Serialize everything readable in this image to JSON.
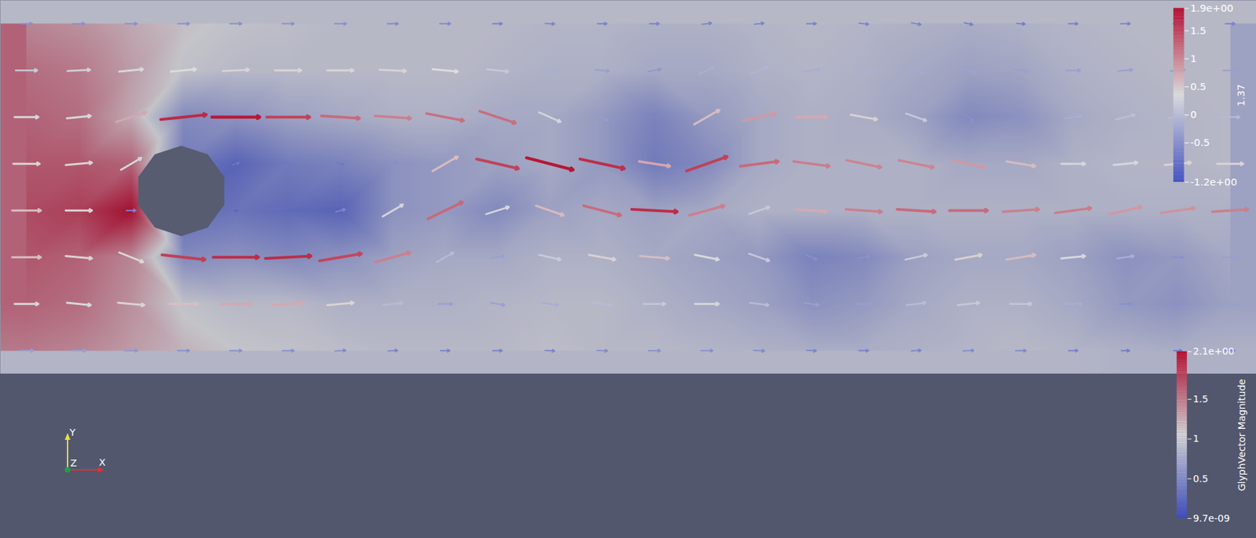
{
  "chart_data": {
    "type": "vector_field",
    "xlim": [
      0,
      16.8
    ],
    "ylim": [
      0,
      5
    ],
    "tick_labels": false,
    "x": [
      0.35,
      1.05,
      1.75,
      2.45,
      3.15,
      3.85,
      4.55,
      5.25,
      5.95,
      6.65,
      7.35,
      8.05,
      8.75,
      9.45,
      10.15,
      10.85,
      11.55,
      12.25,
      12.95,
      13.65,
      14.35,
      15.05,
      15.75,
      16.45
    ],
    "y": [
      0.3125,
      0.9375,
      1.5625,
      2.1875,
      2.8125,
      3.4375,
      4.0625,
      4.6875
    ],
    "u": [
      [
        0.6,
        0.6,
        0.55,
        0.5,
        0.5,
        0.5,
        0.45,
        0.4,
        0.4,
        0.4,
        0.4,
        0.45,
        0.5,
        0.5,
        0.45,
        0.4,
        0.4,
        0.4,
        0.45,
        0.45,
        0.4,
        0.35,
        0.35,
        0.4
      ],
      [
        1.0,
        1.0,
        1.1,
        1.2,
        1.3,
        1.3,
        1.1,
        0.8,
        0.6,
        0.6,
        0.7,
        0.8,
        0.9,
        1.0,
        0.8,
        0.6,
        0.6,
        0.8,
        0.9,
        0.9,
        0.7,
        0.5,
        0.5,
        0.6
      ],
      [
        1.2,
        1.1,
        1.0,
        1.8,
        1.9,
        1.9,
        1.75,
        1.45,
        0.7,
        0.6,
        0.9,
        1.1,
        1.2,
        1.0,
        0.85,
        0.45,
        0.5,
        0.9,
        1.1,
        1.2,
        1.0,
        0.7,
        0.5,
        0.6
      ],
      [
        1.2,
        1.1,
        0.4,
        0,
        0.15,
        0.2,
        0.4,
        0.85,
        1.45,
        0.95,
        1.15,
        1.55,
        1.9,
        1.45,
        0.85,
        1.3,
        1.5,
        1.6,
        1.6,
        1.5,
        1.5,
        1.35,
        1.4,
        1.5
      ],
      [
        1.1,
        1.1,
        0.85,
        0,
        0.3,
        0.25,
        0.3,
        0.45,
        1.05,
        1.75,
        1.95,
        1.85,
        1.3,
        1.7,
        1.6,
        1.5,
        1.45,
        1.45,
        1.35,
        1.2,
        1.0,
        1.0,
        1.1,
        1.1
      ],
      [
        1.0,
        1.0,
        1.25,
        1.9,
        2.0,
        1.8,
        1.6,
        1.5,
        1.55,
        1.5,
        0.9,
        0.5,
        0.4,
        1.05,
        1.35,
        1.3,
        1.1,
        0.85,
        0.4,
        0.5,
        0.7,
        0.8,
        0.8,
        0.8
      ],
      [
        0.9,
        0.95,
        1.0,
        1.05,
        1.1,
        1.1,
        1.1,
        1.1,
        1.05,
        0.9,
        0.7,
        0.6,
        0.55,
        0.65,
        0.7,
        0.7,
        0.7,
        0.65,
        0.6,
        0.6,
        0.6,
        0.6,
        0.6,
        0.6
      ],
      [
        0.5,
        0.5,
        0.5,
        0.5,
        0.5,
        0.5,
        0.5,
        0.45,
        0.45,
        0.4,
        0.4,
        0.4,
        0.4,
        0.4,
        0.4,
        0.4,
        0.4,
        0.4,
        0.35,
        0.35,
        0.4,
        0.4,
        0.4,
        0.4
      ]
    ],
    "v": [
      [
        0,
        0,
        0,
        0,
        0,
        0,
        0.02,
        0.02,
        0,
        0,
        -0.02,
        -0.02,
        0,
        0,
        -0.02,
        -0.02,
        0,
        0.02,
        0.02,
        0,
        0,
        0,
        0,
        0
      ],
      [
        0,
        -0.1,
        -0.1,
        0,
        0,
        0.1,
        0.1,
        0.1,
        0,
        -0.1,
        -0.1,
        -0.1,
        0,
        0,
        -0.1,
        -0.1,
        0,
        0.1,
        0.1,
        0,
        0,
        0,
        0,
        0
      ],
      [
        0,
        -0.1,
        -0.4,
        -0.2,
        0,
        0.1,
        0.3,
        0.4,
        0.4,
        0.1,
        -0.2,
        -0.2,
        -0.1,
        -0.2,
        -0.3,
        -0.2,
        0.1,
        0.2,
        0.2,
        0.2,
        0.1,
        0.1,
        0,
        0
      ],
      [
        0,
        0,
        0,
        0,
        0,
        0,
        0.1,
        0.5,
        0.7,
        0.3,
        -0.4,
        -0.4,
        -0.1,
        0.4,
        0.3,
        -0.1,
        -0.1,
        -0.1,
        0,
        0.1,
        0.2,
        0.3,
        0.2,
        0.1
      ],
      [
        0,
        0.1,
        0.5,
        0,
        0.1,
        -0.2,
        -0.1,
        0.2,
        0.6,
        -0.4,
        -0.5,
        -0.4,
        -0.2,
        0.6,
        0.2,
        -0.2,
        -0.3,
        -0.3,
        -0.3,
        -0.2,
        0,
        0.1,
        0.1,
        0
      ],
      [
        0,
        0.1,
        0.4,
        0.2,
        0,
        0,
        -0.1,
        -0.1,
        -0.3,
        -0.5,
        -0.4,
        -0.3,
        -0.1,
        0.6,
        0.3,
        0,
        -0.2,
        -0.3,
        -0.3,
        -0.1,
        0.1,
        0.2,
        0.1,
        0
      ],
      [
        0,
        0.05,
        0.1,
        0.1,
        0.05,
        0,
        0,
        -0.05,
        -0.1,
        -0.1,
        -0.1,
        -0.05,
        0.1,
        0.3,
        0.3,
        0.1,
        -0.2,
        -0.2,
        -0.2,
        -0.1,
        0,
        0.05,
        0.05,
        0
      ],
      [
        0,
        0,
        0,
        0,
        0,
        0,
        0,
        0,
        0,
        0,
        -0.02,
        0,
        0,
        0.05,
        0.05,
        0,
        -0.05,
        -0.08,
        -0.08,
        -0.02,
        0,
        0,
        0,
        0
      ]
    ],
    "scalar": [
      [
        1.0,
        0.9,
        0.7,
        0.5,
        0.35,
        0.3,
        0.25,
        0.2,
        0.2,
        0.2,
        0.25,
        0.2,
        0.2,
        0.15,
        0.1,
        0.05,
        0.05,
        0.1,
        0.15,
        0.2,
        0.15,
        0.1,
        0.05,
        0.1
      ],
      [
        1.2,
        1.1,
        0.8,
        0.3,
        0.2,
        0.2,
        0.1,
        0.1,
        0.1,
        0.15,
        0.2,
        0.2,
        0.1,
        0.0,
        -0.1,
        -0.3,
        -0.2,
        0.0,
        0.1,
        0.1,
        0.0,
        -0.2,
        -0.3,
        -0.1
      ],
      [
        1.3,
        1.2,
        0.9,
        -0.4,
        -0.3,
        -0.4,
        -0.3,
        -0.1,
        0.0,
        0.0,
        0.1,
        0.1,
        0.0,
        -0.1,
        -0.2,
        -0.5,
        -0.4,
        -0.1,
        0.0,
        0.0,
        -0.1,
        -0.3,
        -0.2,
        0.0
      ],
      [
        1.4,
        1.5,
        1.9,
        -0.8,
        -0.7,
        -0.8,
        -0.9,
        -0.3,
        -0.2,
        -0.4,
        -0.1,
        0.0,
        -0.1,
        0.0,
        0.1,
        0.1,
        0.1,
        0.1,
        0.1,
        0.1,
        0.1,
        0.1,
        0.1,
        0.1
      ],
      [
        1.3,
        1.3,
        1.2,
        -0.6,
        -0.9,
        -0.6,
        -0.5,
        -0.3,
        -0.2,
        -0.1,
        0.0,
        -0.2,
        -0.6,
        -0.4,
        0.0,
        0.1,
        0.1,
        0.1,
        0.0,
        0.0,
        0.1,
        0.15,
        0.15,
        0.2
      ],
      [
        1.2,
        1.1,
        0.6,
        -0.4,
        -0.3,
        -0.1,
        0.0,
        0.1,
        0.1,
        0.0,
        0.0,
        -0.2,
        -0.5,
        -0.2,
        0.0,
        0.1,
        0.05,
        -0.1,
        -0.4,
        -0.3,
        0.0,
        0.1,
        0.15,
        0.2
      ],
      [
        1.1,
        1.0,
        0.7,
        0.3,
        0.2,
        0.2,
        0.2,
        0.2,
        0.2,
        0.15,
        0.1,
        0.1,
        0.0,
        0.0,
        0.1,
        0.15,
        0.1,
        0.0,
        -0.1,
        -0.05,
        0.1,
        0.15,
        0.2,
        0.2
      ],
      [
        0.9,
        0.8,
        0.6,
        0.4,
        0.3,
        0.25,
        0.2,
        0.2,
        0.2,
        0.2,
        0.15,
        0.15,
        0.1,
        0.1,
        0.15,
        0.2,
        0.15,
        0.1,
        0.05,
        0.1,
        0.15,
        0.2,
        0.2,
        0.2
      ]
    ],
    "obstacle": {
      "x": 2.42,
      "y": 2.45,
      "r": 0.6
    },
    "colorbars": [
      {
        "title": "1.37",
        "range": [
          -1.2,
          1.9
        ],
        "ticks": [
          {
            "value": -1.2,
            "label": "-1.2e+00"
          },
          -0.5,
          0,
          0.5,
          1,
          1.5,
          {
            "value": 1.9,
            "label": "1.9e+00"
          }
        ]
      },
      {
        "title": "GlyphVector Magnitude",
        "range": [
          9.7e-09,
          2.1
        ],
        "ticks": [
          {
            "value": 9.7e-09,
            "label": "9.7e-09"
          },
          0.5,
          1,
          1.5,
          {
            "value": 2.1,
            "label": "2.1e+00"
          }
        ]
      }
    ],
    "axes_triad": [
      "X",
      "Y",
      "Z"
    ]
  }
}
